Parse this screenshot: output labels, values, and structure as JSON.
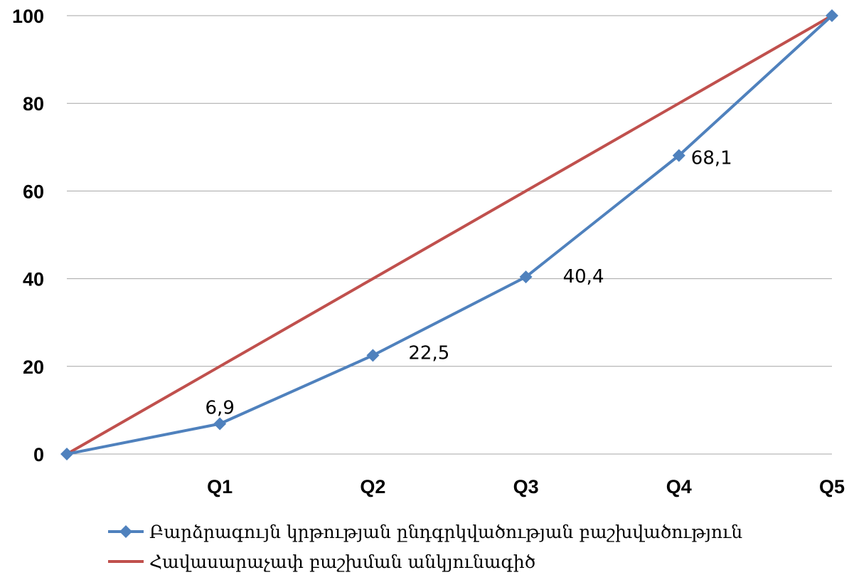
{
  "chart_data": {
    "type": "line",
    "categories": [
      "",
      "Q1",
      "Q2",
      "Q3",
      "Q4",
      "Q5"
    ],
    "ylim": [
      0,
      100
    ],
    "yticks": [
      0,
      20,
      40,
      60,
      80,
      100
    ],
    "grid": true,
    "legend_position": "bottom",
    "series": [
      {
        "name": "Բարձրագույն կրթության ընդգրկվածության բաշխվածություն",
        "values": [
          0,
          6.9,
          22.5,
          40.4,
          68.1,
          100
        ],
        "data_labels": [
          "",
          "6,9",
          "22,5",
          "40,4",
          "68,1",
          ""
        ],
        "color": "#4f81bd",
        "marker": "diamond"
      },
      {
        "name": "Հավասարաչափ բաշխման անկյունագիծ",
        "values": [
          0,
          20,
          40,
          60,
          80,
          100
        ],
        "color": "#c0504d",
        "marker": "none"
      }
    ]
  }
}
